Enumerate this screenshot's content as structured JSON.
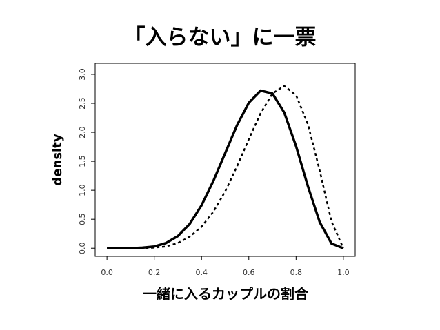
{
  "chart_data": {
    "type": "line",
    "title": "「入らない」に一票",
    "x_label": "一緒に入るカップルの割合",
    "y_label": "density",
    "x": [
      0,
      0.05,
      0.1,
      0.15,
      0.2,
      0.25,
      0.3,
      0.35,
      0.4,
      0.45,
      0.5,
      0.55,
      0.6,
      0.65,
      0.7,
      0.75,
      0.8,
      0.85,
      0.9,
      0.95,
      1
    ],
    "series": [
      {
        "color": "#000000",
        "dash": "solid",
        "values": [
          0,
          0,
          0,
          0.01,
          0.03,
          0.09,
          0.21,
          0.42,
          0.74,
          1.16,
          1.64,
          2.12,
          2.51,
          2.72,
          2.67,
          2.34,
          1.76,
          1.07,
          0.45,
          0.08,
          0
        ]
      },
      {
        "color": "#000000",
        "dash": "dotted",
        "values": [
          0,
          0,
          0,
          0,
          0.01,
          0.03,
          0.09,
          0.2,
          0.37,
          0.63,
          0.98,
          1.41,
          1.88,
          2.33,
          2.67,
          2.8,
          2.64,
          2.14,
          1.34,
          0.46,
          0
        ]
      }
    ],
    "xlim": [
      -0.05,
      1.05
    ],
    "ylim": [
      -0.14,
      3.19
    ],
    "xticks": [
      {
        "value": 0,
        "label": "0.0"
      },
      0.2,
      0.4,
      0.6,
      0.8,
      {
        "value": 1,
        "label": "1.0"
      }
    ],
    "yticks": [
      {
        "value": 0,
        "label": "0.0"
      },
      0.5,
      {
        "value": 1,
        "label": "1.0"
      },
      1.5,
      {
        "value": 2,
        "label": "2.0"
      },
      2.5,
      {
        "value": 3,
        "label": "3.0"
      }
    ]
  }
}
